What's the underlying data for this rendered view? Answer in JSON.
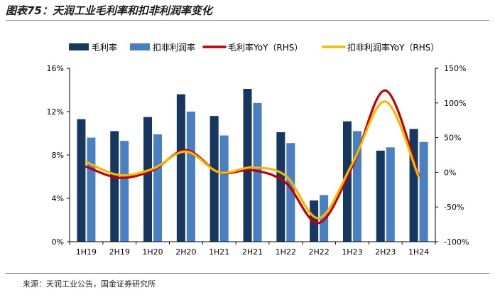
{
  "title": "图表75：天润工业毛利率和扣非利润率变化",
  "source": "来源：天润工业公告，国金证券研究所",
  "chart_data": {
    "type": "bar",
    "categories": [
      "1H19",
      "2H19",
      "1H20",
      "2H20",
      "1H21",
      "2H21",
      "1H22",
      "2H22",
      "1H23",
      "2H23",
      "1H24"
    ],
    "series": [
      {
        "name": "毛利率",
        "kind": "bar",
        "axis": "left",
        "color": "#17375e",
        "values": [
          11.3,
          10.2,
          11.5,
          13.6,
          11.6,
          14.1,
          10.1,
          3.8,
          11.1,
          8.4,
          10.4
        ]
      },
      {
        "name": "扣非利润率",
        "kind": "bar",
        "axis": "left",
        "color": "#4a7fc1",
        "values": [
          9.6,
          9.3,
          9.9,
          12.0,
          9.8,
          12.8,
          9.1,
          4.3,
          10.2,
          8.7,
          9.2
        ]
      },
      {
        "name": "毛利率YoY（RHS）",
        "kind": "line",
        "axis": "right",
        "color": "#c00000",
        "values": [
          8,
          -8,
          3,
          32,
          0,
          3,
          -15,
          -73,
          8,
          118,
          -5
        ]
      },
      {
        "name": "扣非利润率YoY（RHS）",
        "kind": "line",
        "axis": "right",
        "color": "#f5b800",
        "values": [
          15,
          -4,
          5,
          30,
          0,
          7,
          -5,
          -66,
          12,
          102,
          -7
        ]
      }
    ],
    "y_left": {
      "min": 0,
      "max": 16,
      "ticks": [
        0,
        4,
        8,
        12,
        16
      ],
      "tick_labels": [
        "0%",
        "4%",
        "8%",
        "12%",
        "16%"
      ]
    },
    "y_right": {
      "min": -100,
      "max": 150,
      "ticks": [
        -100,
        -50,
        0,
        50,
        100,
        150
      ],
      "tick_labels": [
        "-100%",
        "-50%",
        "0%",
        "50%",
        "100%",
        "150%"
      ]
    },
    "legend_position": "top",
    "grid": false
  }
}
